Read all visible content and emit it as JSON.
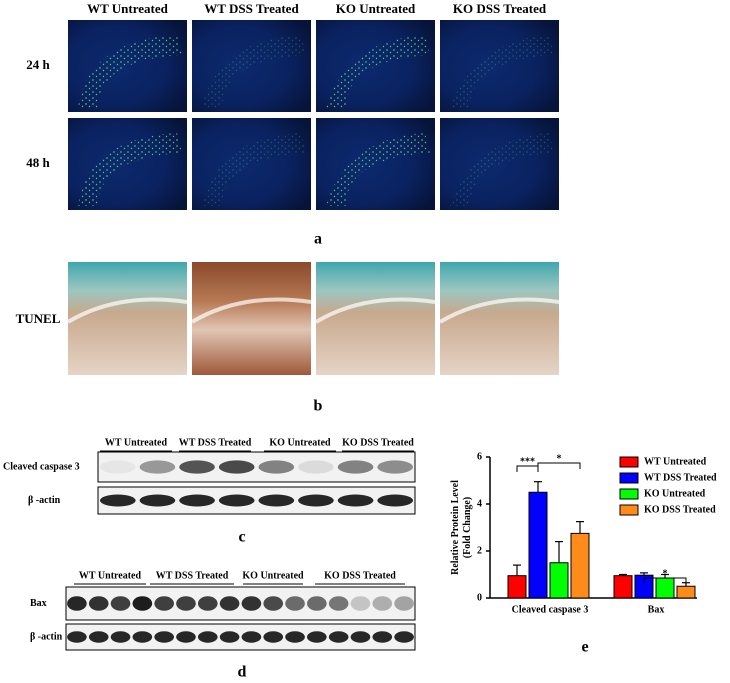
{
  "panel_a": {
    "columns": [
      "WT Untreated",
      "WT DSS Treated",
      "KO Untreated",
      "KO DSS Treated"
    ],
    "rows": [
      "24 h",
      "48 h"
    ],
    "label": "a"
  },
  "panel_b": {
    "row_label": "TUNEL",
    "label": "b"
  },
  "panel_c": {
    "lanes": [
      "WT Untreated",
      "WT DSS Treated",
      "KO Untreated",
      "KO DSS Treated"
    ],
    "rows": [
      "Cleaved caspase 3",
      "β -actin"
    ],
    "label": "c"
  },
  "panel_d": {
    "lanes": [
      "WT Untreated",
      "WT DSS Treated",
      "KO Untreated",
      "KO DSS Treated"
    ],
    "rows": [
      "Bax",
      "β -actin"
    ],
    "label": "d"
  },
  "chart_data": {
    "type": "bar",
    "ylabel": [
      "Relative Protein Level",
      "(Fold Change)"
    ],
    "categories": [
      "Cleaved caspase 3",
      "Bax"
    ],
    "series": [
      {
        "name": "WT Untreated",
        "color": "#ff0000",
        "values": [
          0.95,
          0.95
        ],
        "errors": [
          0.45,
          0.05
        ]
      },
      {
        "name": "WT DSS Treated",
        "color": "#0000ff",
        "values": [
          4.5,
          0.97
        ],
        "errors": [
          0.45,
          0.1
        ]
      },
      {
        "name": "KO Untreated",
        "color": "#00ff00",
        "values": [
          1.5,
          0.85
        ],
        "errors": [
          0.9,
          0.15
        ]
      },
      {
        "name": "KO DSS Treated",
        "color": "#ff8c1a",
        "values": [
          2.75,
          0.5
        ],
        "errors": [
          0.5,
          0.15
        ]
      }
    ],
    "ylim": [
      0,
      6
    ],
    "yticks": [
      0,
      2,
      4,
      6
    ],
    "annotations": [
      {
        "text": "***"
      },
      {
        "text": "*"
      },
      {
        "text": "*"
      }
    ],
    "label": "e"
  }
}
